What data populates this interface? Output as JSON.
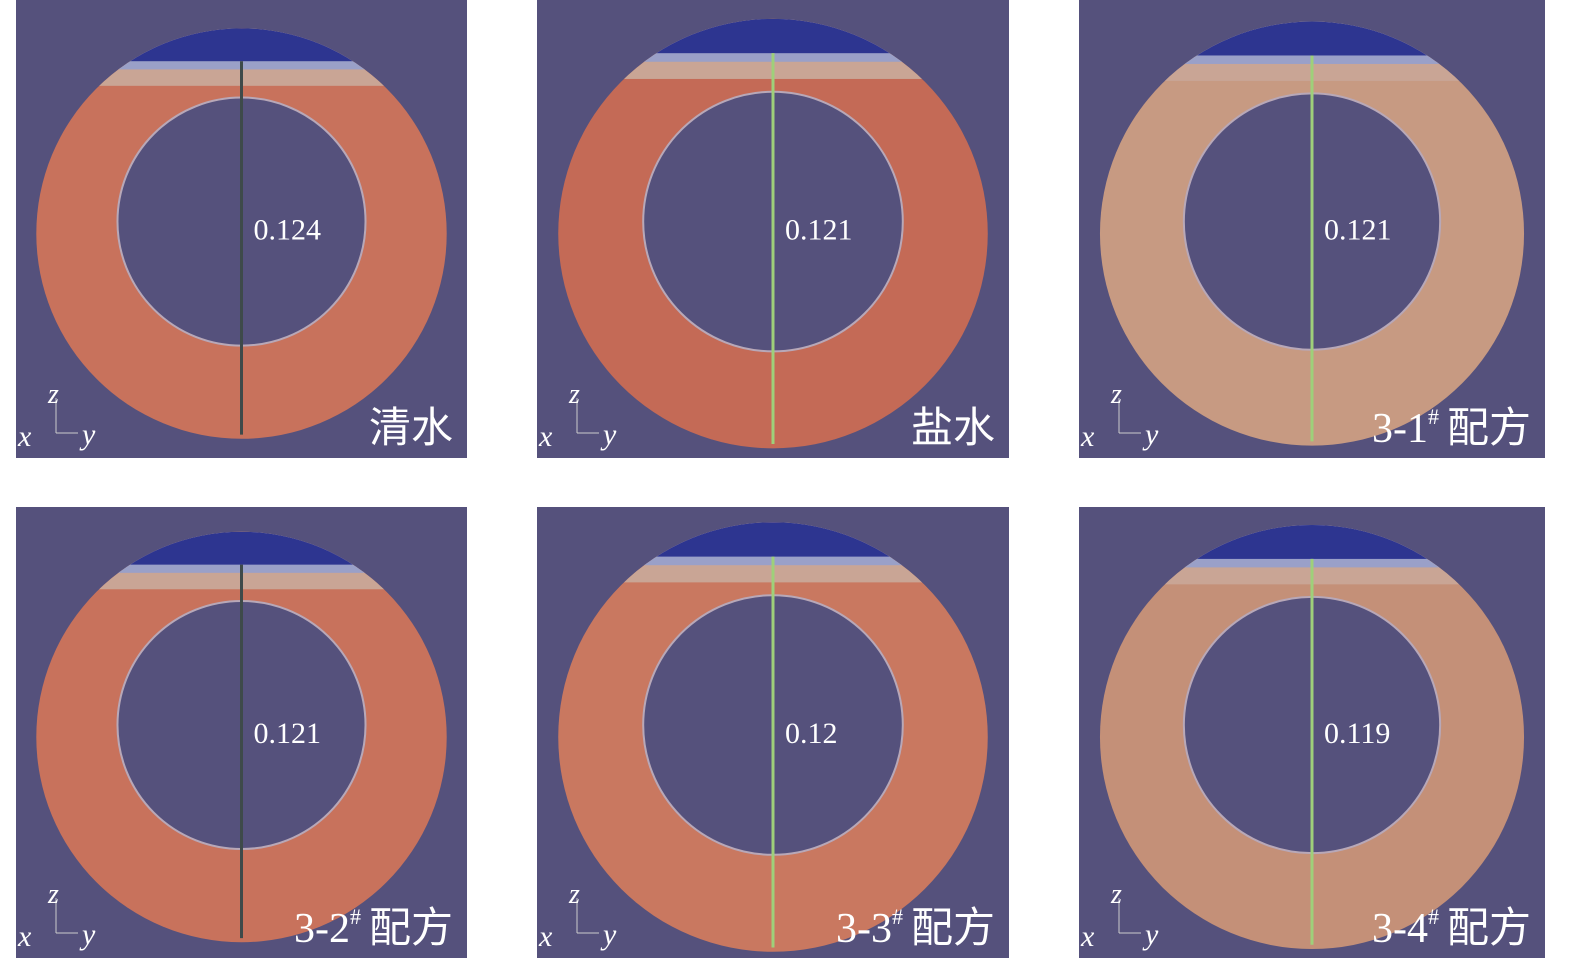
{
  "panels": [
    {
      "measurement": "0.124",
      "caption": {
        "text": "清水"
      },
      "color": "#c8725c",
      "line_color": "#3e4a4a"
    },
    {
      "measurement": "0.121",
      "caption": {
        "text": "盐水"
      },
      "color": "#c46a56",
      "line_color": "#9ed07a"
    },
    {
      "measurement": "0.121",
      "caption": {
        "text": "3-1",
        "sup": "#",
        "suffix": "配方"
      },
      "color": "#c79a82",
      "line_color": "#9ed07a"
    },
    {
      "measurement": "0.121",
      "caption": {
        "text": "3-2",
        "sup": "#",
        "suffix": "配方"
      },
      "color": "#c8725c",
      "line_color": "#3e4a4a"
    },
    {
      "measurement": "0.12",
      "caption": {
        "text": "3-3",
        "sup": "#",
        "suffix": "配方"
      },
      "color": "#c97860",
      "line_color": "#9ed07a"
    },
    {
      "measurement": "0.119",
      "caption": {
        "text": "3-4",
        "sup": "#",
        "suffix": "配方"
      },
      "color": "#c49078",
      "line_color": "#9ed07a"
    }
  ],
  "axis_labels": {
    "z": "z",
    "x": "x",
    "y": "y"
  }
}
